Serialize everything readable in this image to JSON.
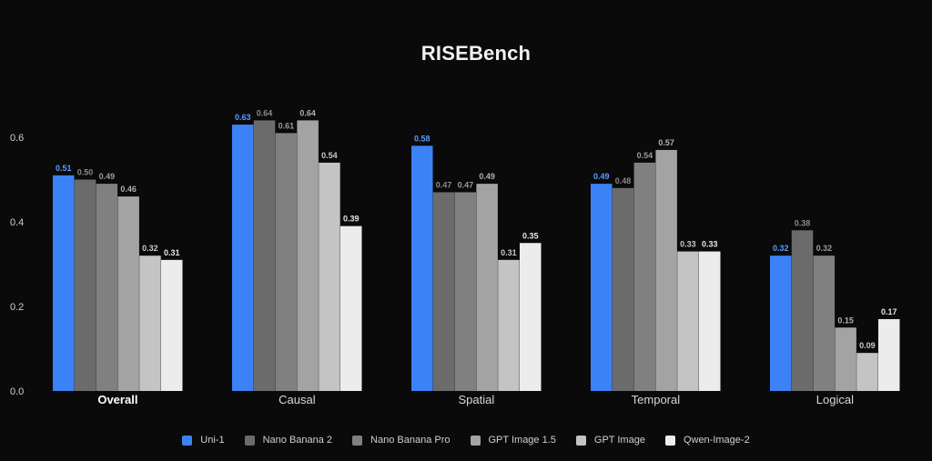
{
  "chart_data": {
    "type": "bar",
    "title": "RISEBench",
    "xlabel": "",
    "ylabel": "",
    "ylim": [
      0,
      0.66
    ],
    "yticks": [
      "0.0",
      "0.2",
      "0.4",
      "0.6"
    ],
    "grid": false,
    "legend_position": "bottom",
    "categories": [
      "Overall",
      "Causal",
      "Spatial",
      "Temporal",
      "Logical"
    ],
    "bold_category": "Overall",
    "series": [
      {
        "name": "Uni-1",
        "color": "#3b82f6",
        "label_color": "#5b9bff",
        "values": [
          0.51,
          0.63,
          0.58,
          0.49,
          0.32
        ],
        "labels": [
          "0.51",
          "0.63",
          "0.58",
          "0.49",
          "0.32"
        ]
      },
      {
        "name": "Nano Banana 2",
        "color": "#6b6b6b",
        "label_color": "#8a8a8a",
        "values": [
          0.5,
          0.64,
          0.47,
          0.48,
          0.38
        ],
        "labels": [
          "0.50",
          "0.64",
          "0.47",
          "0.48",
          "0.38"
        ]
      },
      {
        "name": "Nano Banana Pro",
        "color": "#808080",
        "label_color": "#9a9a9a",
        "values": [
          0.49,
          0.61,
          0.47,
          0.54,
          0.32
        ],
        "labels": [
          "0.49",
          "0.61",
          "0.47",
          "0.54",
          "0.32"
        ]
      },
      {
        "name": "GPT Image 1.5",
        "color": "#a3a3a3",
        "label_color": "#b0b0b0",
        "values": [
          0.46,
          0.64,
          0.49,
          0.57,
          0.15
        ],
        "labels": [
          "0.46",
          "0.64",
          "0.49",
          "0.57",
          "0.15"
        ]
      },
      {
        "name": "GPT Image",
        "color": "#c4c4c4",
        "label_color": "#c8c8c8",
        "values": [
          0.32,
          0.54,
          0.31,
          0.33,
          0.09
        ],
        "labels": [
          "0.32",
          "0.54",
          "0.31",
          "0.33",
          "0.09"
        ]
      },
      {
        "name": "Qwen-Image-2",
        "color": "#ececec",
        "label_color": "#e6e6e6",
        "values": [
          0.31,
          0.39,
          0.35,
          0.33,
          0.17
        ],
        "labels": [
          "0.31",
          "0.39",
          "0.35",
          "0.33",
          "0.17"
        ]
      }
    ]
  }
}
